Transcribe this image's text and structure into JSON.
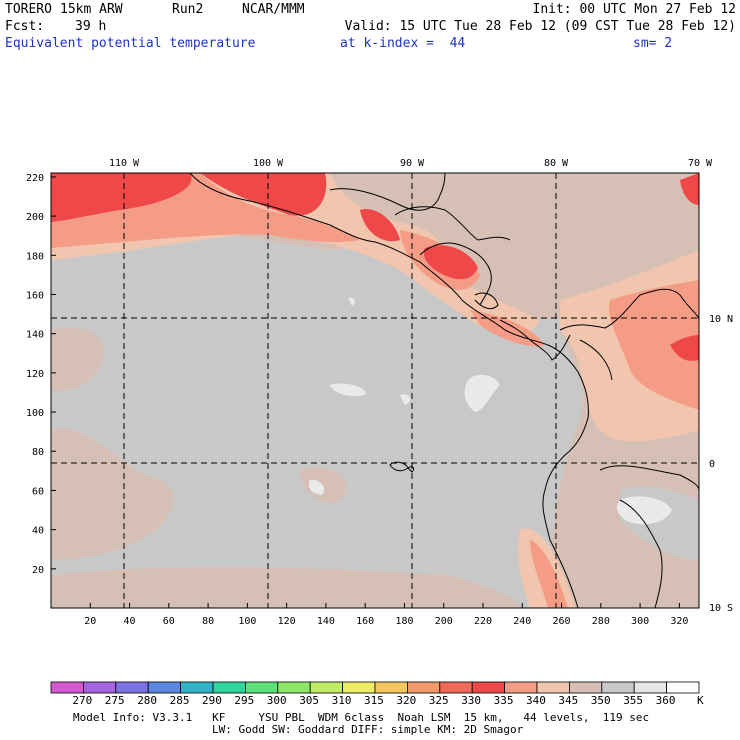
{
  "header": {
    "model": "TORERO",
    "resolution": "15km ARW",
    "run": "Run2",
    "org": "NCAR/MMM",
    "init": "Init: 00 UTC Mon 27 Feb 12",
    "fcst_label": "Fcst:",
    "fcst_value": "39 h",
    "valid": "Valid: 15 UTC Tue 28 Feb 12 (09 CST Tue 28 Feb 12)",
    "field": "Equivalent potential temperature",
    "level": "at k-index =  44",
    "smoothing": "sm= 2"
  },
  "map": {
    "lon_labels": [
      "110 W",
      "100 W",
      "90 W",
      "80 W",
      "70 W"
    ],
    "lat_labels": [
      "10 N",
      "0",
      "10 S"
    ],
    "x_ticks": [
      "20",
      "40",
      "60",
      "80",
      "100",
      "120",
      "140",
      "160",
      "180",
      "200",
      "220",
      "240",
      "260",
      "280",
      "300",
      "320"
    ],
    "y_ticks": [
      "20",
      "40",
      "60",
      "80",
      "100",
      "120",
      "140",
      "160",
      "180",
      "200",
      "220"
    ]
  },
  "colorbar": {
    "unit": "K",
    "levels": [
      "270",
      "275",
      "280",
      "285",
      "290",
      "295",
      "300",
      "305",
      "310",
      "315",
      "320",
      "325",
      "330",
      "335",
      "340",
      "345",
      "350",
      "355",
      "360"
    ],
    "colors": [
      "#d45ad2",
      "#a366e0",
      "#7b72e6",
      "#5a86e0",
      "#33b4c6",
      "#2ed69c",
      "#5ce07a",
      "#8ee868",
      "#c2ec64",
      "#eeee66",
      "#f4c860",
      "#f49a6a",
      "#f06a5a",
      "#ee4848",
      "#f49c86",
      "#f2c6ae",
      "#d6c0b6",
      "#c8c8c8",
      "#e6e6e6",
      "#ffffff"
    ]
  },
  "footer": {
    "line1": "Model Info: V3.3.1   KF     YSU PBL  WDM 6class  Noah LSM  15 km,   44 levels,  119 sec",
    "line2": "LW: Godd SW: Goddard DIFF: simple KM: 2D Smagor"
  }
}
